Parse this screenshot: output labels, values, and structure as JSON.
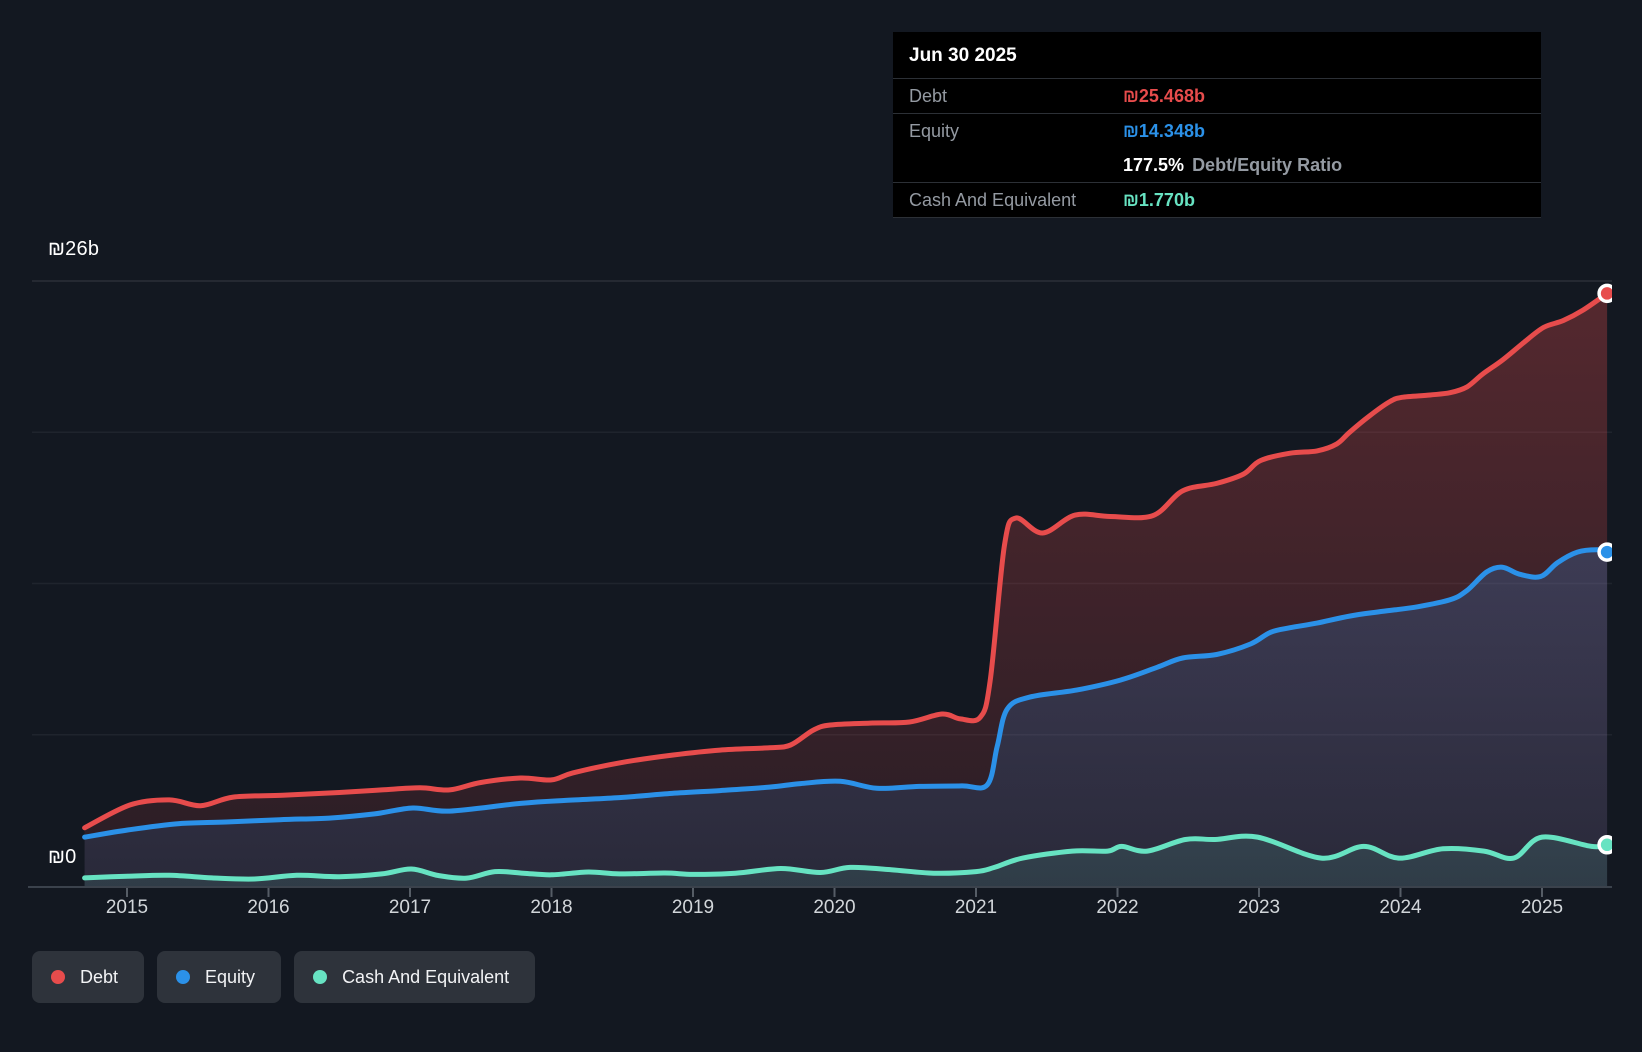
{
  "tooltip": {
    "date": "Jun 30 2025",
    "rows": [
      {
        "label": "Debt",
        "value": "₪25.468b",
        "series": "debt"
      },
      {
        "label": "Equity",
        "value": "₪14.348b",
        "series": "equity"
      },
      {
        "label": "Cash And Equivalent",
        "value": "₪1.770b",
        "series": "cash"
      }
    ],
    "ratio": {
      "pct": "177.5%",
      "label": "Debt/Equity Ratio"
    }
  },
  "y_axis": {
    "top_label": "₪26b",
    "bottom_label": "₪0",
    "max": 26,
    "min": 0
  },
  "x_axis": {
    "years": [
      "2015",
      "2016",
      "2017",
      "2018",
      "2019",
      "2020",
      "2021",
      "2022",
      "2023",
      "2024",
      "2025"
    ]
  },
  "legend": [
    {
      "label": "Debt",
      "series": "debt"
    },
    {
      "label": "Equity",
      "series": "equity"
    },
    {
      "label": "Cash And Equivalent",
      "series": "cash"
    }
  ],
  "colors": {
    "debt": "#e74c4c",
    "equity": "#2b91e8",
    "cash": "#67e3c2",
    "page_bg": "#131821",
    "tooltip_bg": "#000000",
    "label_gray": "#949aa2",
    "year_label": "#d2d6da",
    "legend_bg": "#2e333b",
    "axis_line": "#3b424c"
  },
  "chart_data": {
    "type": "area",
    "title": "",
    "xlabel": "",
    "ylabel": "₪ billions",
    "x_range": [
      2014.7,
      2025.5
    ],
    "ylim": [
      0,
      26
    ],
    "grid": "horizontal-quarters",
    "legend_position": "bottom-left",
    "x_unit": "year",
    "marker_date": "Jun 30 2025",
    "series": [
      {
        "name": "Debt",
        "series": "debt",
        "end_value": 25.468,
        "points": [
          [
            2014.7,
            2.5
          ],
          [
            2015.02,
            3.48
          ],
          [
            2015.3,
            3.7
          ],
          [
            2015.52,
            3.45
          ],
          [
            2015.75,
            3.82
          ],
          [
            2016.1,
            3.9
          ],
          [
            2016.5,
            4.02
          ],
          [
            2016.8,
            4.13
          ],
          [
            2017.07,
            4.22
          ],
          [
            2017.28,
            4.13
          ],
          [
            2017.5,
            4.45
          ],
          [
            2017.78,
            4.64
          ],
          [
            2018.0,
            4.56
          ],
          [
            2018.15,
            4.86
          ],
          [
            2018.48,
            5.29
          ],
          [
            2018.86,
            5.63
          ],
          [
            2019.19,
            5.84
          ],
          [
            2019.54,
            5.94
          ],
          [
            2019.69,
            6.06
          ],
          [
            2019.85,
            6.7
          ],
          [
            2019.97,
            6.92
          ],
          [
            2020.25,
            7.0
          ],
          [
            2020.53,
            7.05
          ],
          [
            2020.76,
            7.39
          ],
          [
            2020.89,
            7.18
          ],
          [
            2021.03,
            7.25
          ],
          [
            2021.1,
            8.8
          ],
          [
            2021.2,
            14.6
          ],
          [
            2021.28,
            15.81
          ],
          [
            2021.47,
            15.17
          ],
          [
            2021.7,
            15.94
          ],
          [
            2021.95,
            15.88
          ],
          [
            2022.25,
            15.92
          ],
          [
            2022.46,
            16.98
          ],
          [
            2022.7,
            17.3
          ],
          [
            2022.89,
            17.7
          ],
          [
            2023.01,
            18.28
          ],
          [
            2023.22,
            18.6
          ],
          [
            2023.41,
            18.7
          ],
          [
            2023.55,
            19.0
          ],
          [
            2023.64,
            19.5
          ],
          [
            2023.78,
            20.2
          ],
          [
            2023.92,
            20.8
          ],
          [
            2024.01,
            21.0
          ],
          [
            2024.21,
            21.1
          ],
          [
            2024.35,
            21.2
          ],
          [
            2024.47,
            21.45
          ],
          [
            2024.58,
            22.0
          ],
          [
            2024.72,
            22.6
          ],
          [
            2024.86,
            23.3
          ],
          [
            2025.01,
            24.0
          ],
          [
            2025.15,
            24.3
          ],
          [
            2025.29,
            24.75
          ],
          [
            2025.46,
            25.468
          ]
        ]
      },
      {
        "name": "Equity",
        "series": "equity",
        "end_value": 14.348,
        "points": [
          [
            2014.7,
            2.1
          ],
          [
            2015.02,
            2.42
          ],
          [
            2015.37,
            2.68
          ],
          [
            2015.7,
            2.75
          ],
          [
            2016.08,
            2.85
          ],
          [
            2016.43,
            2.92
          ],
          [
            2016.75,
            3.1
          ],
          [
            2017.02,
            3.35
          ],
          [
            2017.28,
            3.22
          ],
          [
            2017.78,
            3.55
          ],
          [
            2018.1,
            3.68
          ],
          [
            2018.48,
            3.8
          ],
          [
            2018.85,
            3.98
          ],
          [
            2019.19,
            4.1
          ],
          [
            2019.54,
            4.25
          ],
          [
            2019.76,
            4.4
          ],
          [
            2020.04,
            4.5
          ],
          [
            2020.3,
            4.2
          ],
          [
            2020.6,
            4.28
          ],
          [
            2020.9,
            4.3
          ],
          [
            2021.08,
            4.35
          ],
          [
            2021.15,
            6.0
          ],
          [
            2021.22,
            7.6
          ],
          [
            2021.38,
            8.12
          ],
          [
            2021.71,
            8.42
          ],
          [
            2022.02,
            8.85
          ],
          [
            2022.28,
            9.4
          ],
          [
            2022.46,
            9.8
          ],
          [
            2022.7,
            9.95
          ],
          [
            2022.94,
            10.4
          ],
          [
            2023.08,
            10.9
          ],
          [
            2023.22,
            11.1
          ],
          [
            2023.41,
            11.3
          ],
          [
            2023.64,
            11.6
          ],
          [
            2023.87,
            11.8
          ],
          [
            2024.12,
            12.0
          ],
          [
            2024.35,
            12.3
          ],
          [
            2024.47,
            12.7
          ],
          [
            2024.61,
            13.5
          ],
          [
            2024.72,
            13.7
          ],
          [
            2024.84,
            13.4
          ],
          [
            2024.99,
            13.3
          ],
          [
            2025.11,
            13.9
          ],
          [
            2025.25,
            14.35
          ],
          [
            2025.39,
            14.45
          ],
          [
            2025.46,
            14.348
          ]
        ]
      },
      {
        "name": "Cash And Equivalent",
        "series": "cash",
        "end_value": 1.77,
        "points": [
          [
            2014.7,
            0.35
          ],
          [
            2015.0,
            0.42
          ],
          [
            2015.3,
            0.46
          ],
          [
            2015.6,
            0.35
          ],
          [
            2015.9,
            0.3
          ],
          [
            2016.2,
            0.46
          ],
          [
            2016.5,
            0.4
          ],
          [
            2016.8,
            0.52
          ],
          [
            2017.01,
            0.73
          ],
          [
            2017.2,
            0.45
          ],
          [
            2017.4,
            0.34
          ],
          [
            2017.6,
            0.62
          ],
          [
            2017.8,
            0.55
          ],
          [
            2018.0,
            0.48
          ],
          [
            2018.26,
            0.6
          ],
          [
            2018.48,
            0.52
          ],
          [
            2018.8,
            0.56
          ],
          [
            2019.0,
            0.5
          ],
          [
            2019.3,
            0.55
          ],
          [
            2019.62,
            0.75
          ],
          [
            2019.9,
            0.58
          ],
          [
            2020.11,
            0.8
          ],
          [
            2020.4,
            0.7
          ],
          [
            2020.7,
            0.55
          ],
          [
            2021.0,
            0.62
          ],
          [
            2021.13,
            0.8
          ],
          [
            2021.33,
            1.2
          ],
          [
            2021.68,
            1.5
          ],
          [
            2021.93,
            1.5
          ],
          [
            2022.03,
            1.7
          ],
          [
            2022.21,
            1.5
          ],
          [
            2022.48,
            2.0
          ],
          [
            2022.69,
            2.0
          ],
          [
            2022.99,
            2.1
          ],
          [
            2023.44,
            1.2
          ],
          [
            2023.74,
            1.7
          ],
          [
            2023.99,
            1.2
          ],
          [
            2024.3,
            1.6
          ],
          [
            2024.59,
            1.5
          ],
          [
            2024.8,
            1.2
          ],
          [
            2025.0,
            2.1
          ],
          [
            2025.35,
            1.7
          ],
          [
            2025.46,
            1.77
          ]
        ]
      }
    ]
  }
}
